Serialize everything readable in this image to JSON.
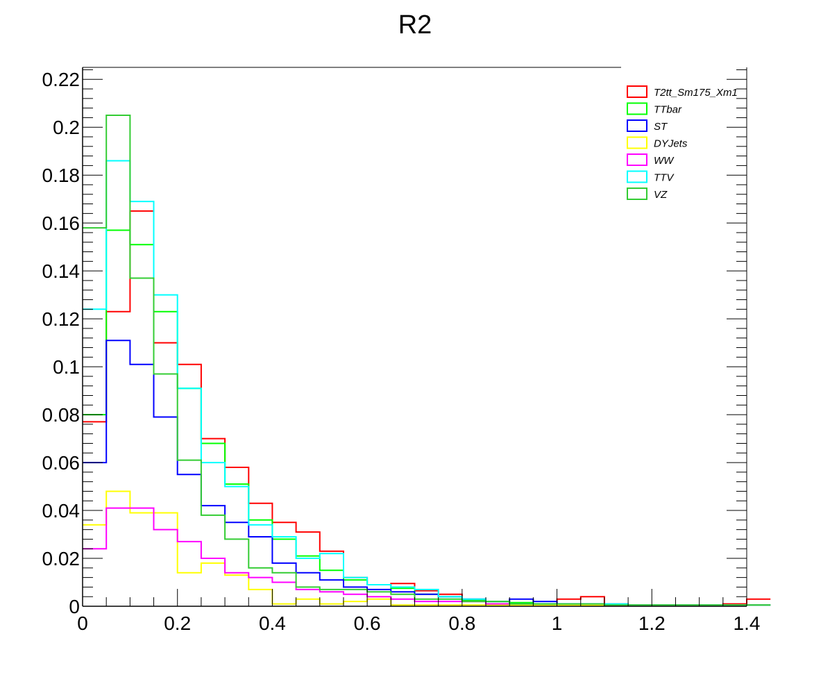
{
  "chart_data": {
    "type": "histogram",
    "title": "R2",
    "xlabel": "",
    "ylabel": "",
    "xlim": [
      0,
      1.4
    ],
    "ylim": [
      0,
      0.225
    ],
    "bin_width": 0.05,
    "x_ticks": [
      {
        "value": 0,
        "label": "0"
      },
      {
        "value": 0.2,
        "label": "0.2"
      },
      {
        "value": 0.4,
        "label": "0.4"
      },
      {
        "value": 0.6,
        "label": "0.6"
      },
      {
        "value": 0.8,
        "label": "0.8"
      },
      {
        "value": 1.0,
        "label": "1"
      },
      {
        "value": 1.2,
        "label": "1.2"
      },
      {
        "value": 1.4,
        "label": "1.4"
      }
    ],
    "y_ticks": [
      {
        "value": 0,
        "label": "0"
      },
      {
        "value": 0.02,
        "label": "0.02"
      },
      {
        "value": 0.04,
        "label": "0.04"
      },
      {
        "value": 0.06,
        "label": "0.06"
      },
      {
        "value": 0.08,
        "label": "0.08"
      },
      {
        "value": 0.1,
        "label": "0.1"
      },
      {
        "value": 0.12,
        "label": "0.12"
      },
      {
        "value": 0.14,
        "label": "0.14"
      },
      {
        "value": 0.16,
        "label": "0.16"
      },
      {
        "value": 0.18,
        "label": "0.18"
      },
      {
        "value": 0.2,
        "label": "0.2"
      },
      {
        "value": 0.22,
        "label": "0.22"
      }
    ],
    "legend_position": "top-right",
    "series": [
      {
        "name": "T2tt_Sm175_Xm1",
        "color": "#ff0000",
        "values": [
          0.077,
          0.123,
          0.165,
          0.11,
          0.101,
          0.07,
          0.058,
          0.043,
          0.035,
          0.031,
          0.023,
          0.012,
          0.009,
          0.0095,
          0.0065,
          0.005,
          0.002,
          0.002,
          0.001,
          0.001,
          0.003,
          0.004,
          0.001,
          0.0005,
          0.0005,
          0.0005,
          0.0005,
          0.001,
          0.003
        ]
      },
      {
        "name": "TTbar",
        "color": "#00ff00",
        "values": [
          0.08,
          0.157,
          0.151,
          0.123,
          0.091,
          0.068,
          0.051,
          0.036,
          0.028,
          0.021,
          0.015,
          0.011,
          0.009,
          0.0075,
          0.005,
          0.004,
          0.0025,
          0.002,
          0.0015,
          0.001,
          0.001,
          0.0005,
          0.0005,
          0.0005,
          0.0005,
          0.0005,
          0.0005,
          0.0005,
          0.0005
        ]
      },
      {
        "name": "ST",
        "color": "#0000ff",
        "values": [
          0.06,
          0.111,
          0.101,
          0.079,
          0.055,
          0.042,
          0.035,
          0.029,
          0.018,
          0.014,
          0.011,
          0.008,
          0.007,
          0.006,
          0.005,
          0.004,
          0.003,
          0.002,
          0.003,
          0.002,
          0.001,
          0.001,
          0.0005,
          0.0005,
          0.0005,
          0.0005,
          0.0005,
          0.0005,
          0.0005
        ]
      },
      {
        "name": "DYJets",
        "color": "#ffff00",
        "values": [
          0.034,
          0.048,
          0.039,
          0.039,
          0.014,
          0.018,
          0.013,
          0.007,
          0.001,
          0.003,
          0.001,
          0.002,
          0.003,
          0.0005,
          0.0005,
          0.0005,
          0.0005,
          0.0005,
          0.0005,
          0.0005,
          0.0005,
          0.0005,
          0.0005,
          0.0005,
          0.0005,
          0.0005,
          0.0005,
          0.0005,
          0.0005
        ]
      },
      {
        "name": "WW",
        "color": "#ff00ff",
        "values": [
          0.024,
          0.041,
          0.041,
          0.032,
          0.027,
          0.02,
          0.014,
          0.012,
          0.01,
          0.007,
          0.006,
          0.005,
          0.004,
          0.003,
          0.002,
          0.002,
          0.002,
          0.001,
          0.001,
          0.001,
          0.001,
          0.001,
          0.0005,
          0.0005,
          0.0005,
          0.0005,
          0.0005,
          0.0005,
          0.0005
        ]
      },
      {
        "name": "TTV",
        "color": "#00ffff",
        "values": [
          0.124,
          0.186,
          0.169,
          0.13,
          0.091,
          0.06,
          0.05,
          0.034,
          0.029,
          0.02,
          0.022,
          0.012,
          0.009,
          0.008,
          0.007,
          0.004,
          0.003,
          0.002,
          0.001,
          0.001,
          0.001,
          0.001,
          0.001,
          0.0005,
          0.0005,
          0.0005,
          0.0005,
          0.0005,
          0.0005
        ]
      },
      {
        "name": "VZ",
        "color": "#33cc33",
        "values": [
          0.158,
          0.205,
          0.137,
          0.097,
          0.061,
          0.038,
          0.028,
          0.016,
          0.014,
          0.008,
          0.007,
          0.007,
          0.006,
          0.005,
          0.003,
          0.003,
          0.002,
          0.002,
          0.001,
          0.001,
          0.001,
          0.001,
          0.0005,
          0.0005,
          0.0005,
          0.0005,
          0.0005,
          0.0005,
          0.0005
        ]
      }
    ]
  }
}
